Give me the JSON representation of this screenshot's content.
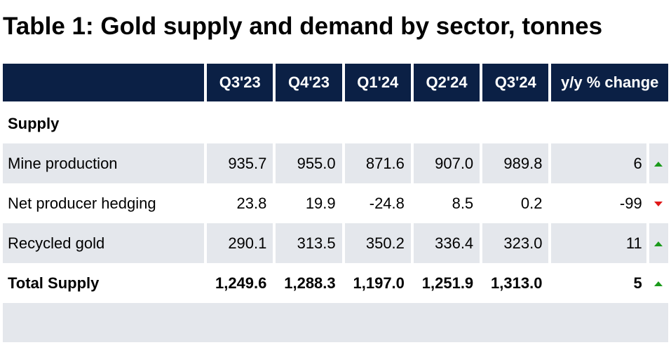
{
  "title": "Table 1: Gold supply and demand by sector, tonnes",
  "header": {
    "columns": [
      "Q3'23",
      "Q4'23",
      "Q1'24",
      "Q2'24",
      "Q3'24",
      "y/y % change"
    ]
  },
  "section_supply": "Supply",
  "rows": [
    {
      "label": "Mine production",
      "values": [
        "935.7",
        "955.0",
        "871.6",
        "907.0",
        "989.8"
      ],
      "change": "6",
      "trend": "up"
    },
    {
      "label": "Net producer hedging",
      "values": [
        "23.8",
        "19.9",
        "-24.8",
        "8.5",
        "0.2"
      ],
      "change": "-99",
      "trend": "down"
    },
    {
      "label": "Recycled gold",
      "values": [
        "290.1",
        "313.5",
        "350.2",
        "336.4",
        "323.0"
      ],
      "change": "11",
      "trend": "up"
    }
  ],
  "total": {
    "label": "Total Supply",
    "values": [
      "1,249.6",
      "1,288.3",
      "1,197.0",
      "1,251.9",
      "1,313.0"
    ],
    "change": "5",
    "trend": "up"
  },
  "colors": {
    "header_bg": "#0b2045",
    "row_shade": "#e4e7ec",
    "up": "#1a9a1a",
    "down": "#e01818"
  }
}
